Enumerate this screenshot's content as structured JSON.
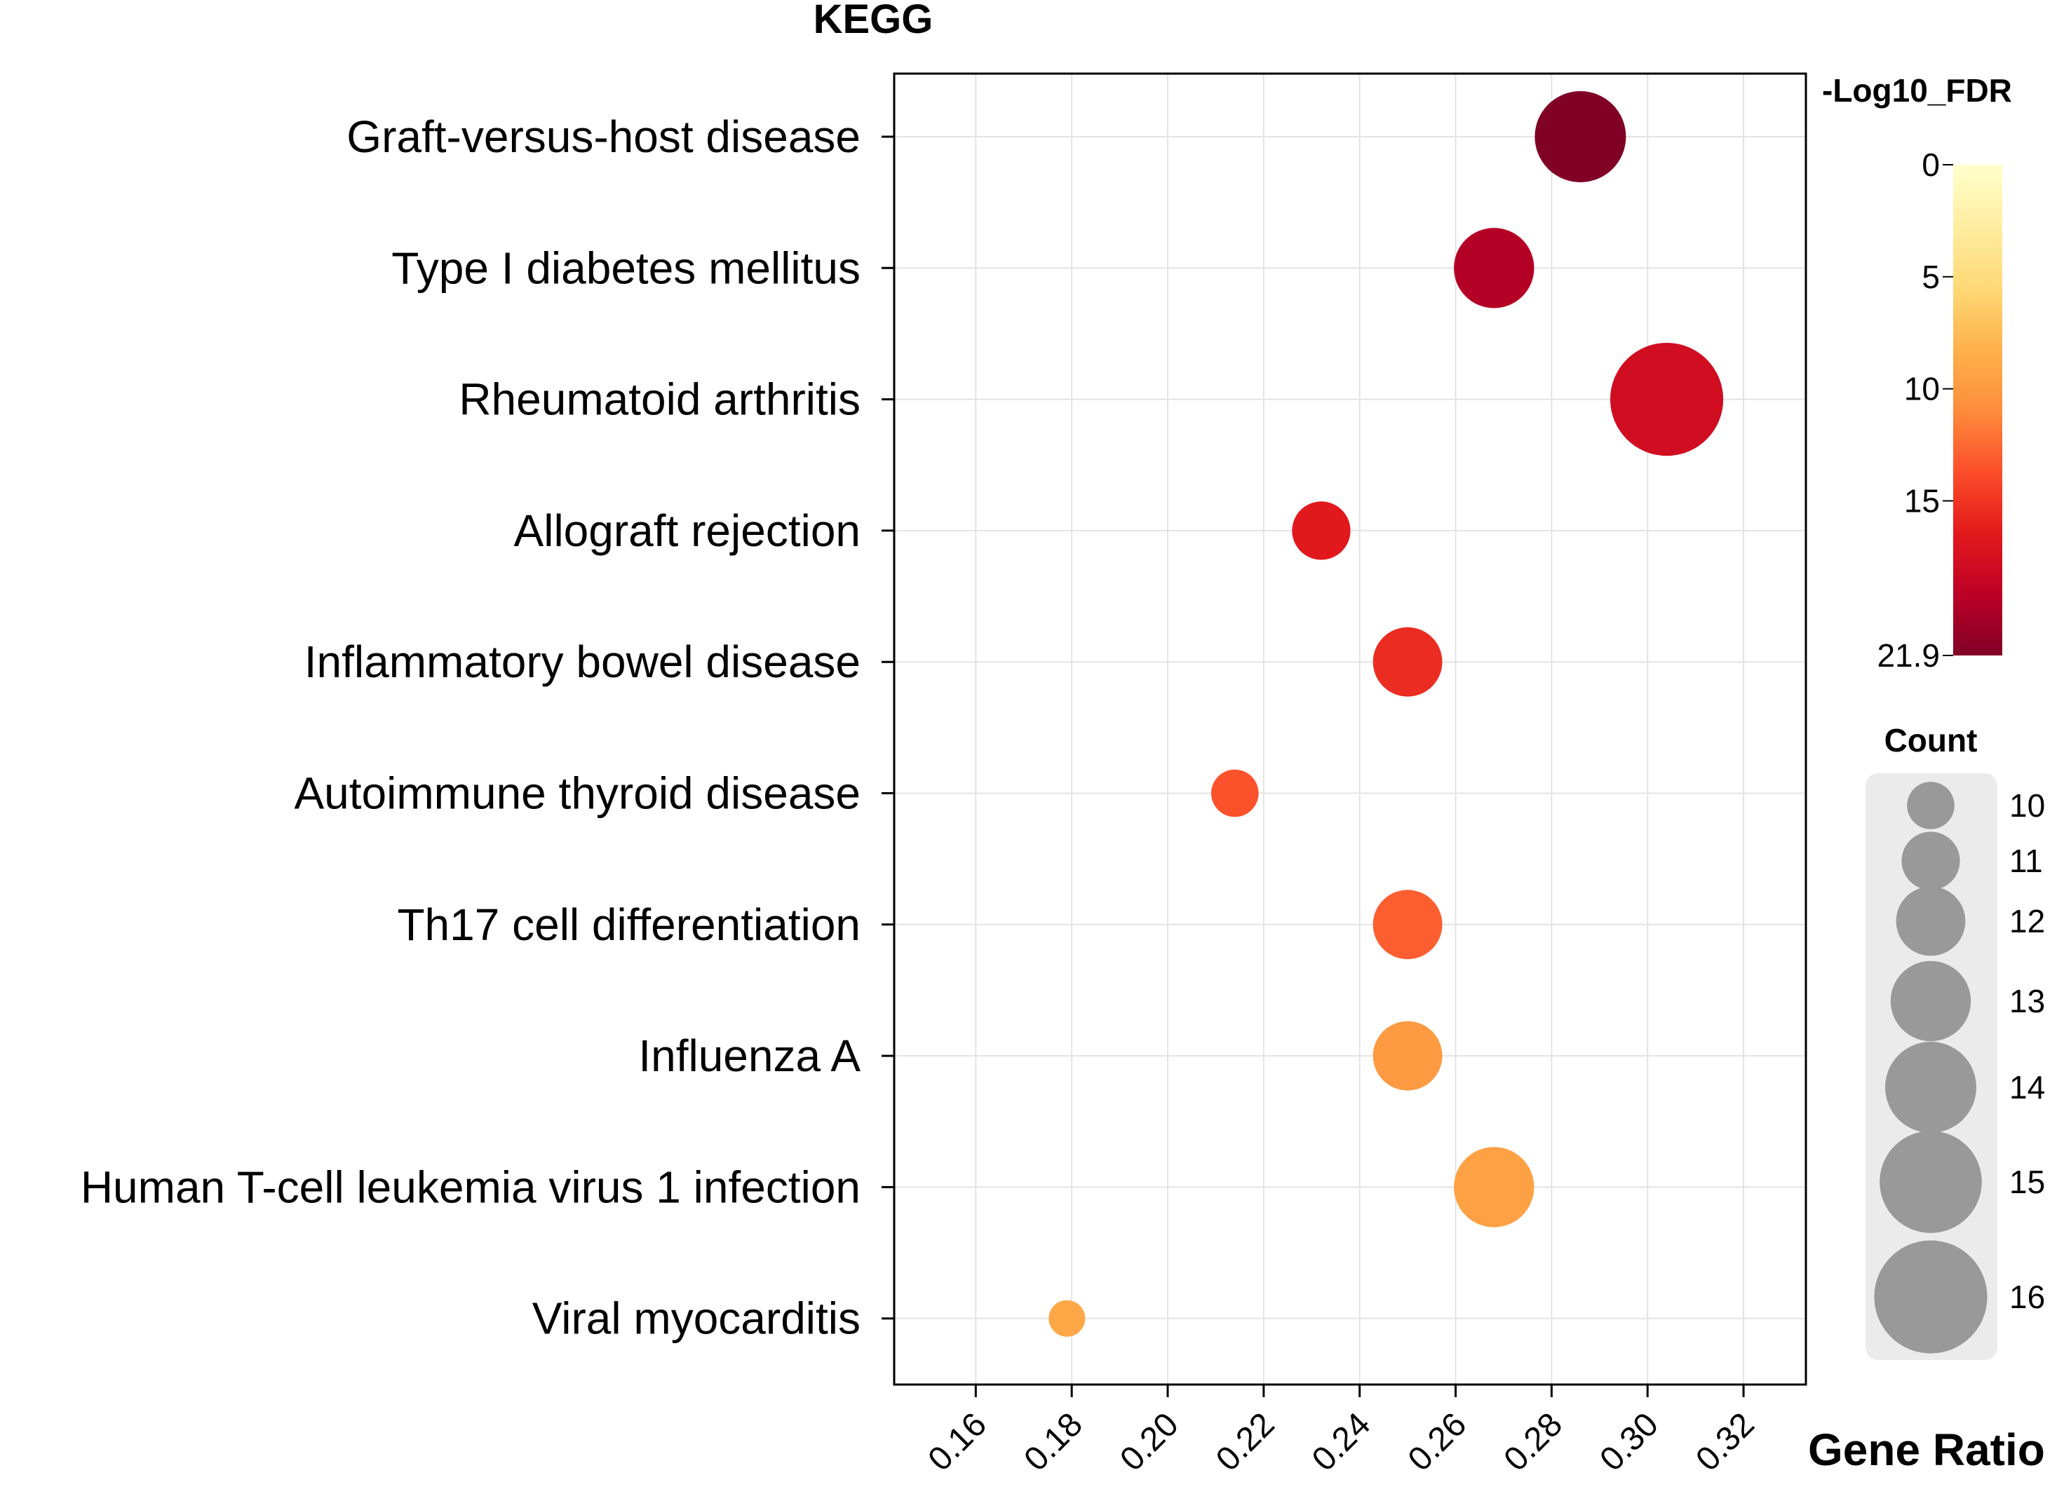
{
  "chart_data": {
    "type": "scatter",
    "title": "KEGG",
    "xlabel": "Gene Ratio",
    "ylabel": "",
    "xlim": [
      0.143,
      0.333
    ],
    "xticks": [
      "0.16",
      "0.18",
      "0.20",
      "0.22",
      "0.24",
      "0.26",
      "0.28",
      "0.30",
      "0.32"
    ],
    "grid": true,
    "categories": [
      "Graft-versus-host disease",
      "Type I diabetes mellitus",
      "Rheumatoid arthritis",
      "Allograft rejection",
      "Inflammatory bowel disease",
      "Autoimmune thyroid disease",
      "Th17 cell differentiation",
      "Influenza A",
      "Human T-cell leukemia virus 1 infection",
      "Viral myocarditis"
    ],
    "gene_ratio": [
      0.286,
      0.268,
      0.304,
      0.232,
      0.25,
      0.214,
      0.25,
      0.25,
      0.268,
      0.179
    ],
    "count": [
      14,
      13,
      16,
      11,
      12,
      10,
      12,
      12,
      13,
      9
    ],
    "neg_log10_fdr": [
      21.9,
      19.5,
      17.8,
      16.5,
      15.5,
      13.5,
      13.0,
      10.0,
      9.5,
      9.0
    ],
    "color_legend": {
      "title": "-Log10_FDR",
      "ticks": [
        "0",
        "5",
        "10",
        "15",
        "21.9"
      ],
      "tick_values": [
        0,
        5,
        10,
        15,
        21.9
      ],
      "range": [
        0,
        21.9
      ],
      "colors": [
        "#ffffcc",
        "#ffeda0",
        "#fed976",
        "#feb24c",
        "#fd8d3c",
        "#fc4e2a",
        "#e31a1c",
        "#bd0026",
        "#800026"
      ]
    },
    "size_legend": {
      "title": "Count",
      "values": [
        10,
        11,
        12,
        13,
        14,
        15,
        16
      ],
      "labels": [
        "10",
        "11",
        "12",
        "13",
        "14",
        "15",
        "16"
      ],
      "color": "#999999",
      "background": "#ebebeb"
    }
  }
}
